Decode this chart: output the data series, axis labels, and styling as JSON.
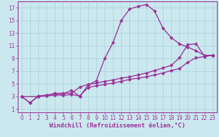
{
  "title": "",
  "xlabel": "Windchill (Refroidissement éolien,°C)",
  "xlim": [
    -0.5,
    23.5
  ],
  "ylim": [
    0.5,
    18
  ],
  "yticks": [
    1,
    3,
    5,
    7,
    9,
    11,
    13,
    15,
    17
  ],
  "xticks": [
    0,
    1,
    2,
    3,
    4,
    5,
    6,
    7,
    8,
    9,
    10,
    11,
    12,
    13,
    14,
    15,
    16,
    17,
    18,
    19,
    20,
    21,
    22,
    23
  ],
  "bg_color": "#cce8ef",
  "grid_color": "#aad4dd",
  "line_color": "#993399",
  "curve3_x": [
    0,
    1,
    2,
    3,
    4,
    5,
    6,
    7,
    8,
    9,
    10,
    11,
    12,
    13,
    14,
    15,
    16,
    17,
    18,
    19,
    20,
    21,
    22,
    23
  ],
  "curve3_y": [
    3.0,
    2.0,
    3.1,
    3.2,
    3.4,
    3.4,
    4.0,
    3.0,
    4.8,
    5.5,
    9.0,
    11.5,
    15.0,
    16.8,
    17.2,
    17.5,
    16.5,
    13.8,
    12.3,
    11.3,
    10.8,
    10.2,
    9.5,
    9.5
  ],
  "curve2_x": [
    0,
    2,
    3,
    4,
    5,
    6,
    7,
    8,
    9,
    10,
    11,
    12,
    13,
    14,
    15,
    16,
    17,
    18,
    19,
    20,
    21,
    22,
    23
  ],
  "curve2_y": [
    3.0,
    3.0,
    3.2,
    3.5,
    3.5,
    3.5,
    4.5,
    4.9,
    5.1,
    5.4,
    5.6,
    5.9,
    6.1,
    6.4,
    6.7,
    7.1,
    7.5,
    7.9,
    9.1,
    11.2,
    11.3,
    9.4,
    9.5
  ],
  "curve1_x": [
    0,
    1,
    2,
    3,
    4,
    5,
    6,
    7,
    8,
    9,
    10,
    11,
    12,
    13,
    14,
    15,
    16,
    17,
    18,
    19,
    20,
    21,
    22,
    23
  ],
  "curve1_y": [
    3.0,
    2.0,
    3.0,
    3.1,
    3.2,
    3.2,
    3.3,
    3.1,
    4.4,
    4.7,
    4.9,
    5.1,
    5.4,
    5.7,
    5.9,
    6.1,
    6.4,
    6.7,
    7.1,
    7.4,
    8.4,
    9.1,
    9.3,
    9.5
  ],
  "marker": "D",
  "markersize": 2.5,
  "linewidth": 1.0,
  "tick_fontsize": 5.5,
  "xlabel_fontsize": 6.5
}
